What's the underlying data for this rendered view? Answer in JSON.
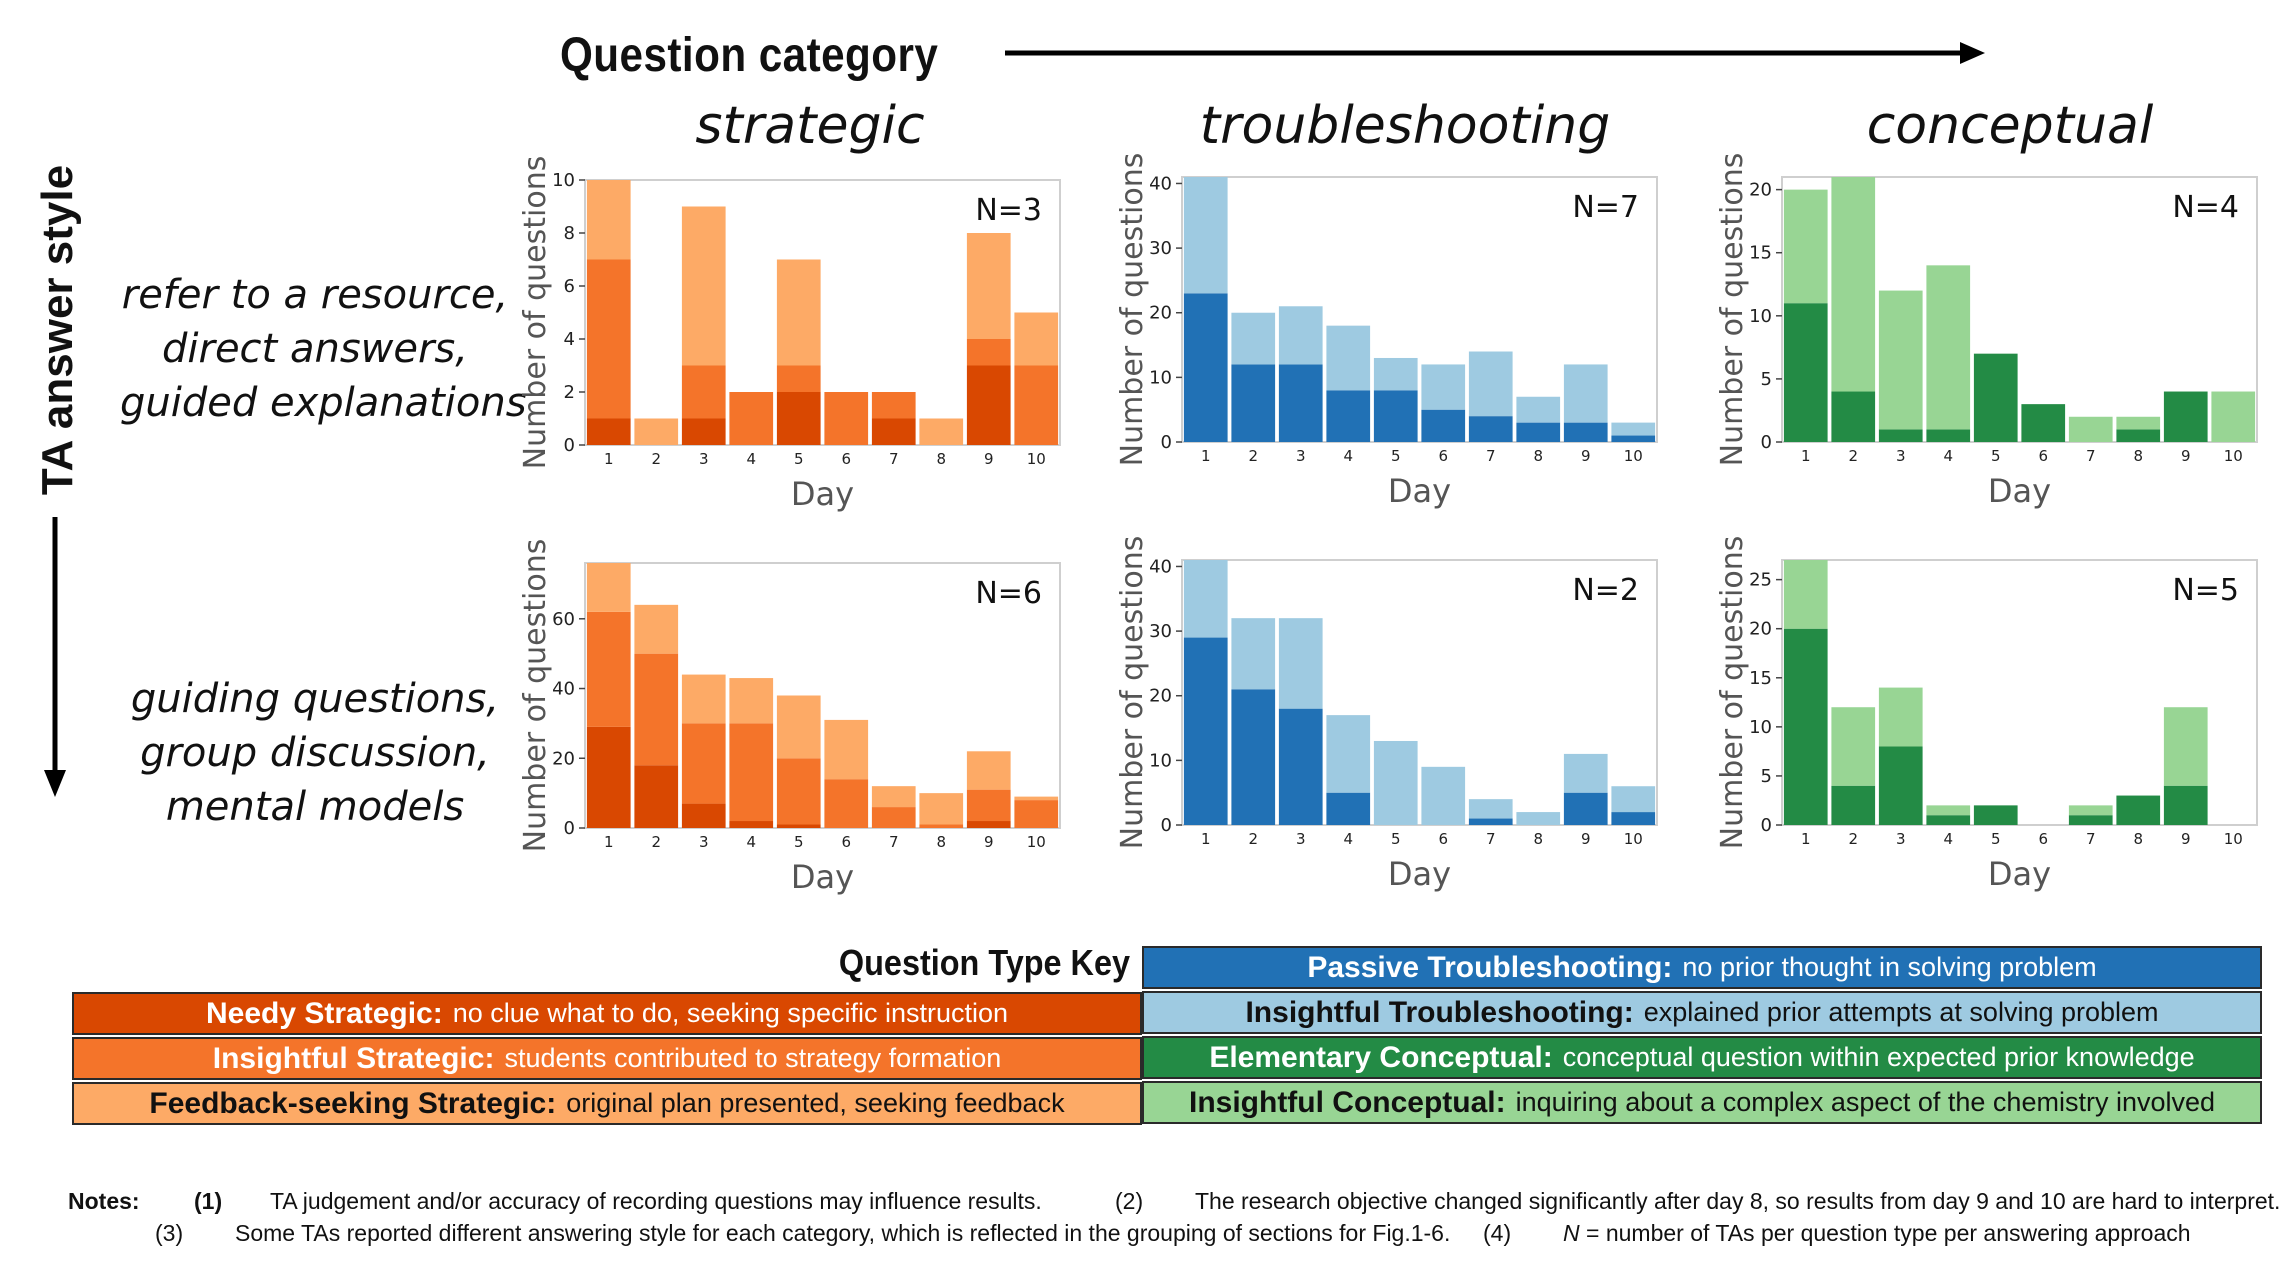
{
  "header": {
    "question_category": "Question category",
    "ta_answer_style": "TA answer style"
  },
  "columns": [
    "strategic",
    "troubleshooting",
    "conceptual"
  ],
  "rows": [
    {
      "lines": [
        "refer to a resource,",
        "direct answers,",
        "guided explanations"
      ]
    },
    {
      "lines": [
        "guiding questions,",
        "group discussion,",
        "mental models"
      ]
    }
  ],
  "colors": {
    "strategic": [
      "#d94801",
      "#f4742a",
      "#fdaa66"
    ],
    "troubleshooting": [
      "#2171b5",
      "#9ecae1"
    ],
    "conceptual": [
      "#238b45",
      "#98d594"
    ]
  },
  "chart_data": [
    {
      "type": "bar",
      "stacked": true,
      "category": "strategic",
      "row": 1,
      "annotation": "N=3",
      "xlabel": "Day",
      "ylabel": "Number of questions",
      "ylim": [
        0,
        10
      ],
      "yticks": [
        0,
        2,
        4,
        6,
        8,
        10
      ],
      "categories": [
        "1",
        "2",
        "3",
        "4",
        "5",
        "6",
        "7",
        "8",
        "9",
        "10"
      ],
      "series": [
        {
          "values": [
            1,
            0,
            1,
            0,
            2,
            0,
            1,
            0,
            3,
            0
          ]
        },
        {
          "values": [
            6,
            0,
            2,
            2,
            1,
            2,
            1,
            0,
            1,
            3
          ]
        },
        {
          "values": [
            3,
            1,
            6,
            0,
            4,
            0,
            0,
            1,
            4,
            2
          ]
        }
      ]
    },
    {
      "type": "bar",
      "stacked": true,
      "category": "troubleshooting",
      "row": 1,
      "annotation": "N=7",
      "xlabel": "Day",
      "ylabel": "Number of questions",
      "ylim": [
        0,
        41
      ],
      "yticks": [
        0,
        10,
        20,
        30,
        40
      ],
      "categories": [
        "1",
        "2",
        "3",
        "4",
        "5",
        "6",
        "7",
        "8",
        "9",
        "10"
      ],
      "series": [
        {
          "values": [
            23,
            12,
            12,
            8,
            8,
            5,
            4,
            3,
            3,
            1
          ]
        },
        {
          "values": [
            18,
            8,
            9,
            10,
            5,
            7,
            10,
            4,
            9,
            2
          ]
        }
      ]
    },
    {
      "type": "bar",
      "stacked": true,
      "category": "conceptual",
      "row": 1,
      "annotation": "N=4",
      "xlabel": "Day",
      "ylabel": "Number of questions",
      "ylim": [
        0,
        21
      ],
      "yticks": [
        0,
        5,
        10,
        15,
        20
      ],
      "categories": [
        "1",
        "2",
        "3",
        "4",
        "5",
        "6",
        "7",
        "8",
        "9",
        "10"
      ],
      "series": [
        {
          "values": [
            11,
            4,
            1,
            1,
            7,
            3,
            0,
            1,
            4,
            0
          ]
        },
        {
          "values": [
            9,
            17,
            11,
            13,
            0,
            0,
            2,
            1,
            0,
            4
          ]
        }
      ]
    },
    {
      "type": "bar",
      "stacked": true,
      "category": "strategic",
      "row": 2,
      "annotation": "N=6",
      "xlabel": "Day",
      "ylabel": "Number of questions",
      "ylim": [
        0,
        76
      ],
      "yticks": [
        0,
        20,
        40,
        60
      ],
      "categories": [
        "1",
        "2",
        "3",
        "4",
        "5",
        "6",
        "7",
        "8",
        "9",
        "10"
      ],
      "series": [
        {
          "values": [
            29,
            18,
            7,
            2,
            1,
            0,
            0,
            0,
            2,
            0
          ]
        },
        {
          "values": [
            33,
            32,
            23,
            28,
            19,
            14,
            6,
            1,
            9,
            8
          ]
        },
        {
          "values": [
            14,
            14,
            14,
            13,
            18,
            17,
            6,
            9,
            11,
            1
          ]
        }
      ]
    },
    {
      "type": "bar",
      "stacked": true,
      "category": "troubleshooting",
      "row": 2,
      "annotation": "N=2",
      "xlabel": "Day",
      "ylabel": "Number of questions",
      "ylim": [
        0,
        41
      ],
      "yticks": [
        0,
        10,
        20,
        30,
        40
      ],
      "categories": [
        "1",
        "2",
        "3",
        "4",
        "5",
        "6",
        "7",
        "8",
        "9",
        "10"
      ],
      "series": [
        {
          "values": [
            29,
            21,
            18,
            5,
            0,
            0,
            1,
            0,
            5,
            2
          ]
        },
        {
          "values": [
            12,
            11,
            14,
            12,
            13,
            9,
            3,
            2,
            6,
            4
          ]
        }
      ]
    },
    {
      "type": "bar",
      "stacked": true,
      "category": "conceptual",
      "row": 2,
      "annotation": "N=5",
      "xlabel": "Day",
      "ylabel": "Number of questions",
      "ylim": [
        0,
        27
      ],
      "yticks": [
        0,
        5,
        10,
        15,
        20,
        25
      ],
      "categories": [
        "1",
        "2",
        "3",
        "4",
        "5",
        "6",
        "7",
        "8",
        "9",
        "10"
      ],
      "series": [
        {
          "values": [
            20,
            4,
            8,
            1,
            2,
            0,
            1,
            3,
            4,
            0
          ]
        },
        {
          "values": [
            7,
            8,
            6,
            1,
            0,
            0,
            1,
            0,
            8,
            0
          ]
        }
      ]
    }
  ],
  "key": {
    "title": "Question Type Key",
    "left": [
      {
        "term": "Needy Strategic:",
        "desc": "no clue what to do, seeking specific instruction",
        "color": "#d94801"
      },
      {
        "term": "Insightful Strategic:",
        "desc": "students contributed to strategy formation",
        "color": "#f4742a"
      },
      {
        "term": "Feedback-seeking Strategic:",
        "desc": "original plan presented, seeking feedback",
        "color": "#fdaa66"
      }
    ],
    "right": [
      {
        "term": "Passive Troubleshooting:",
        "desc": "no prior thought in solving problem",
        "color": "#2171b5"
      },
      {
        "term": "Insightful Troubleshooting:",
        "desc": "explained prior attempts at solving problem",
        "color": "#9ecae1"
      },
      {
        "term": "Elementary Conceptual:",
        "desc": "conceptual question within expected prior knowledge",
        "color": "#238b45"
      },
      {
        "term": "Insightful Conceptual:",
        "desc": "inquiring about a complex aspect of the chemistry involved",
        "color": "#98d594"
      }
    ]
  },
  "notes": {
    "label": "Notes:",
    "n1_num": "(1)",
    "n1": "TA judgement and/or accuracy of recording questions may influence results.",
    "n2_num": "(2)",
    "n2": "The research objective changed significantly after day 8, so results from day 9 and 10 are hard to interpret.",
    "n3_num": "(3)",
    "n3": "Some TAs reported different answering style for each category, which is reflected in the grouping of sections for Fig.1-6.",
    "n4_num": "(4)",
    "n4_var": "N",
    "n4": " = number of TAs per question type per answering approach"
  }
}
